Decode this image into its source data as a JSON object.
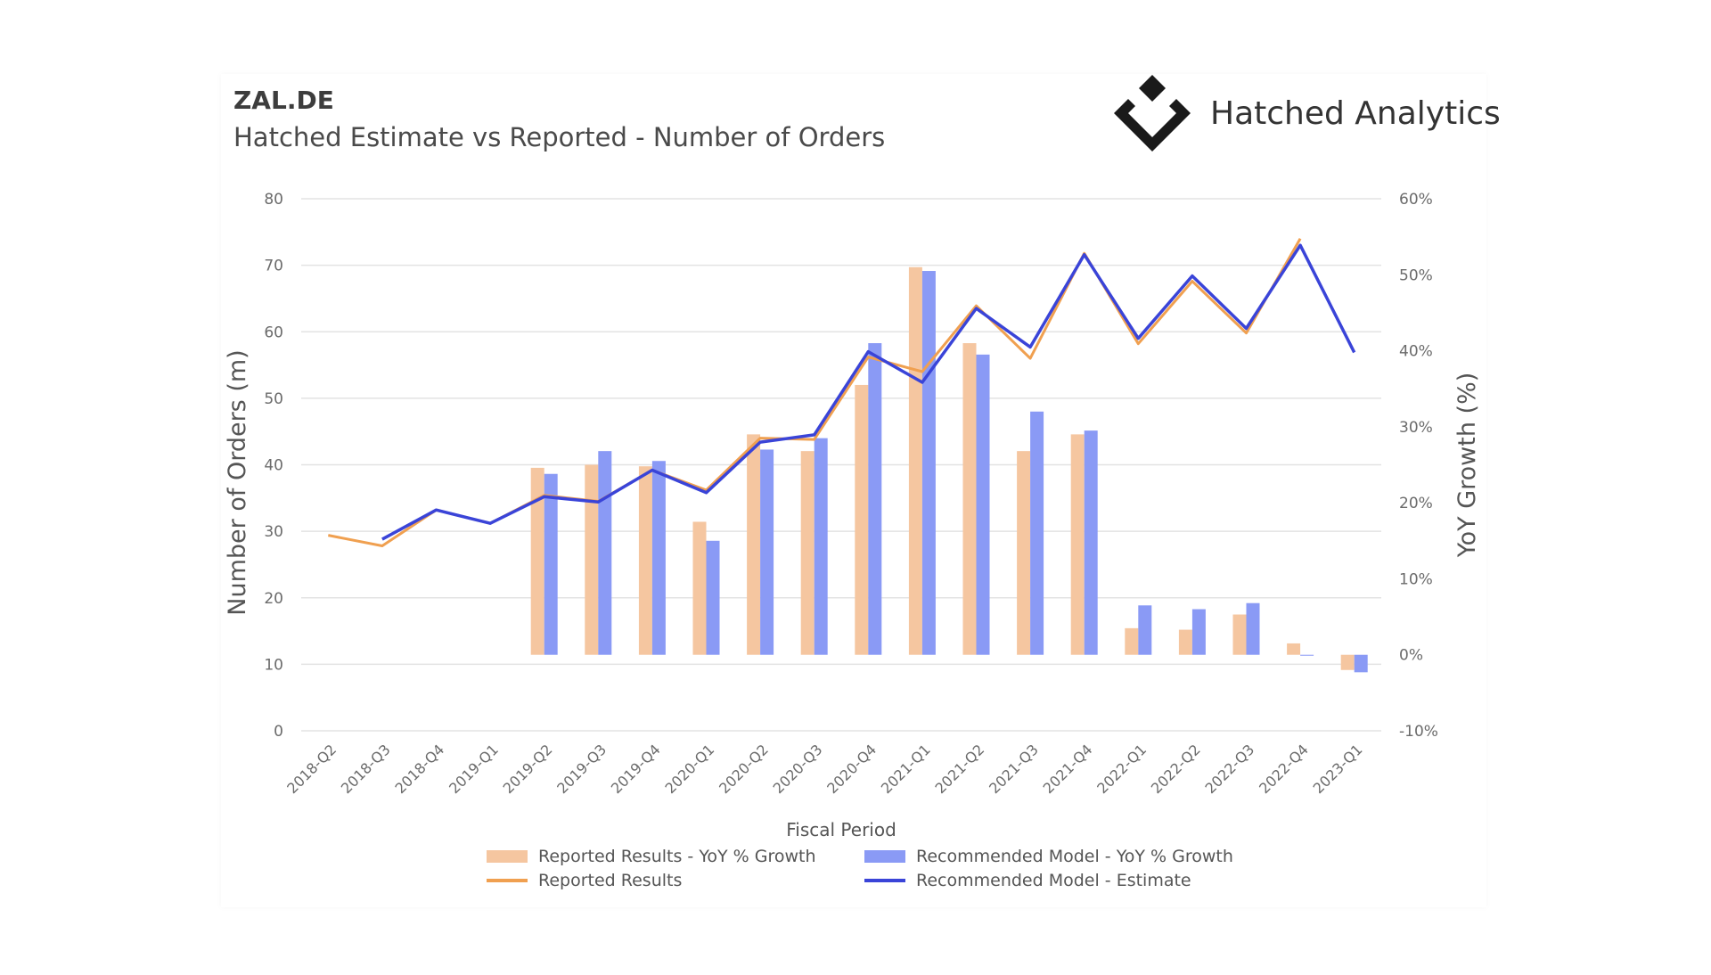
{
  "header": {
    "ticker": "ZAL.DE",
    "subtitle": "Hatched Estimate vs Reported - Number of Orders"
  },
  "brand": {
    "name": "Hatched Analytics",
    "logo_icon": "hatched-diamond-logo"
  },
  "colors": {
    "reported_bar": "#f5c6a0",
    "model_bar": "#8a9af5",
    "reported_line": "#f0a050",
    "model_line": "#3a44d8",
    "grid": "#e3e3e3",
    "axis_text": "#6b6b6b"
  },
  "legend": [
    {
      "label": "Reported Results - YoY % Growth",
      "kind": "bar",
      "color_key": "reported_bar"
    },
    {
      "label": "Recommended Model - YoY % Growth",
      "kind": "bar",
      "color_key": "model_bar"
    },
    {
      "label": "Reported Results",
      "kind": "line",
      "color_key": "reported_line"
    },
    {
      "label": "Recommended Model - Estimate",
      "kind": "line",
      "color_key": "model_line"
    }
  ],
  "chart_data": {
    "type": "bar",
    "xlabel": "Fiscal Period",
    "ylabel": "Number of Orders (m)",
    "y2label": "YoY Growth (%)",
    "ylim": [
      0,
      80
    ],
    "yticks": [
      0,
      10,
      20,
      30,
      40,
      50,
      60,
      70,
      80
    ],
    "y2lim": [
      -10,
      60
    ],
    "y2ticks": [
      -10,
      0,
      10,
      20,
      30,
      40,
      50,
      60
    ],
    "y2tick_labels": [
      "-10%",
      "0%",
      "10%",
      "20%",
      "30%",
      "40%",
      "50%",
      "60%"
    ],
    "grid": true,
    "legend_position": "bottom",
    "categories": [
      "2018-Q2",
      "2018-Q3",
      "2018-Q4",
      "2019-Q1",
      "2019-Q2",
      "2019-Q3",
      "2019-Q4",
      "2020-Q1",
      "2020-Q2",
      "2020-Q3",
      "2020-Q4",
      "2021-Q1",
      "2021-Q2",
      "2021-Q3",
      "2021-Q4",
      "2022-Q1",
      "2022-Q2",
      "2022-Q3",
      "2022-Q4",
      "2023-Q1"
    ],
    "bar_series": [
      {
        "name": "Reported Results - YoY % Growth",
        "axis": "right",
        "values": [
          null,
          null,
          null,
          null,
          24.6,
          25.0,
          24.8,
          17.5,
          29.0,
          26.8,
          35.5,
          51.0,
          41.0,
          26.8,
          29.0,
          3.5,
          3.3,
          5.3,
          1.5,
          -2.0
        ]
      },
      {
        "name": "Recommended Model - YoY % Growth",
        "axis": "right",
        "values": [
          null,
          null,
          null,
          null,
          23.8,
          26.8,
          25.5,
          15.0,
          27.0,
          28.5,
          41.0,
          50.5,
          39.5,
          32.0,
          29.5,
          6.5,
          6.0,
          6.8,
          0.0,
          -2.3
        ]
      }
    ],
    "line_series": [
      {
        "name": "Reported Results",
        "axis": "left",
        "values": [
          29.4,
          27.8,
          33.2,
          31.2,
          35.4,
          34.5,
          39.2,
          36.2,
          44.0,
          43.8,
          56.2,
          54.0,
          63.9,
          56.0,
          71.8,
          58.2,
          67.6,
          59.8,
          74.0,
          null
        ]
      },
      {
        "name": "Recommended Model - Estimate",
        "axis": "left",
        "values": [
          null,
          28.8,
          33.2,
          31.2,
          35.2,
          34.4,
          39.2,
          35.8,
          43.4,
          44.5,
          57.0,
          52.4,
          63.5,
          57.7,
          71.6,
          59.0,
          68.4,
          60.5,
          73.0,
          56.9
        ]
      }
    ]
  }
}
